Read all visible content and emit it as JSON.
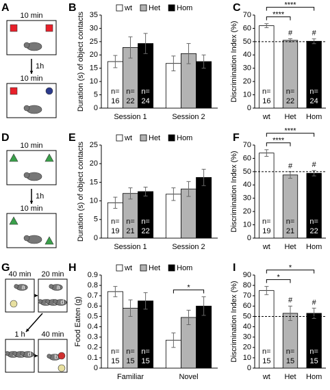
{
  "diagrams": [
    {
      "panel": "A",
      "times": [
        "10 min",
        "10 min"
      ],
      "delay": "1h"
    },
    {
      "panel": "D",
      "times": [
        "10 min",
        "10 min"
      ],
      "delay": "1h"
    },
    {
      "panel": "G",
      "times": [
        "40 min",
        "20 min",
        "1 h",
        "40 min"
      ],
      "mice": [
        [
          "a"
        ],
        [
          "a",
          "b",
          "c",
          "d"
        ],
        [
          "b",
          "c",
          "d"
        ],
        [
          "b"
        ]
      ]
    }
  ],
  "chart_data": [
    {
      "panel": "B",
      "type": "bar",
      "y_label": "Duration (s) of object contacts",
      "categories": [
        "Session 1",
        "Session 2"
      ],
      "series": [
        {
          "name": "wt",
          "color": "#ffffff",
          "values": [
            17.5,
            16.8
          ],
          "errors": [
            2.3,
            2.8
          ],
          "n": [
            16,
            null
          ]
        },
        {
          "name": "Het",
          "color": "#b3b3b3",
          "values": [
            22.8,
            20.5
          ],
          "errors": [
            4,
            3.8
          ],
          "n": [
            22,
            null
          ]
        },
        {
          "name": "Hom",
          "color": "#000000",
          "values": [
            24.3,
            17.5
          ],
          "errors": [
            3.8,
            2.5
          ],
          "n": [
            24,
            null
          ]
        }
      ],
      "n_label": "n=",
      "ylim": [
        0,
        35
      ],
      "yticks": [
        0,
        5,
        10,
        15,
        20,
        25,
        30,
        35
      ],
      "legend": "top"
    },
    {
      "panel": "C",
      "type": "bar",
      "y_label": "Discrimination Index (%)",
      "categories": [
        "wt",
        "Het",
        "Hom"
      ],
      "values": [
        62,
        51,
        50.3
      ],
      "errors": [
        1.5,
        1.2,
        1.8
      ],
      "colors": [
        "#ffffff",
        "#b3b3b3",
        "#000000"
      ],
      "n": [
        16,
        22,
        24
      ],
      "n_label": "n=",
      "ylim": [
        0,
        70
      ],
      "yticks": [
        0,
        10,
        20,
        30,
        40,
        50,
        60,
        70
      ],
      "reference_line": 50,
      "markers": [
        null,
        "#",
        "#"
      ],
      "brackets": [
        {
          "from": 0,
          "to": 1,
          "label": "****"
        },
        {
          "from": 0,
          "to": 2,
          "label": "****"
        }
      ]
    },
    {
      "panel": "E",
      "type": "bar",
      "y_label": "Duration (s) of object contacts",
      "categories": [
        "Session 1",
        "Session 2"
      ],
      "series": [
        {
          "name": "wt",
          "color": "#ffffff",
          "values": [
            9.5,
            11.8
          ],
          "errors": [
            1.5,
            1.7
          ],
          "n": [
            19,
            null
          ]
        },
        {
          "name": "Het",
          "color": "#b3b3b3",
          "values": [
            12,
            13.2
          ],
          "errors": [
            1.5,
            2
          ],
          "n": [
            21,
            null
          ]
        },
        {
          "name": "Hom",
          "color": "#000000",
          "values": [
            12.5,
            16.3
          ],
          "errors": [
            1.2,
            2.2
          ],
          "n": [
            22,
            null
          ]
        }
      ],
      "n_label": "n=",
      "ylim": [
        0,
        25
      ],
      "yticks": [
        0,
        5,
        10,
        15,
        20,
        25
      ],
      "legend": "top"
    },
    {
      "panel": "F",
      "type": "bar",
      "y_label": "Discrimination Index (%)",
      "categories": [
        "wt",
        "Het",
        "Hom"
      ],
      "values": [
        64,
        47.5,
        48.8
      ],
      "errors": [
        2.5,
        2.5,
        2
      ],
      "colors": [
        "#ffffff",
        "#b3b3b3",
        "#000000"
      ],
      "n": [
        19,
        21,
        22
      ],
      "n_label": "n=",
      "ylim": [
        0,
        70
      ],
      "yticks": [
        0,
        10,
        20,
        30,
        40,
        50,
        60,
        70
      ],
      "reference_line": 50,
      "markers": [
        null,
        "#",
        "#"
      ],
      "brackets": [
        {
          "from": 0,
          "to": 1,
          "label": "****"
        },
        {
          "from": 0,
          "to": 2,
          "label": "****"
        }
      ]
    },
    {
      "panel": "H",
      "type": "bar",
      "y_label": "Food Eaten (g)",
      "categories": [
        "Familiar",
        "Novel"
      ],
      "series": [
        {
          "name": "wt",
          "color": "#ffffff",
          "values": [
            0.74,
            0.27
          ],
          "errors": [
            0.05,
            0.07
          ],
          "n": [
            15,
            null
          ]
        },
        {
          "name": "Het",
          "color": "#b3b3b3",
          "values": [
            0.58,
            0.49
          ],
          "errors": [
            0.08,
            0.07
          ],
          "n": [
            15,
            null
          ]
        },
        {
          "name": "Hom",
          "color": "#000000",
          "values": [
            0.65,
            0.6
          ],
          "errors": [
            0.08,
            0.09
          ],
          "n": [
            15,
            null
          ]
        }
      ],
      "n_label": "n=",
      "ylim": [
        0,
        0.9
      ],
      "yticks": [
        0,
        0.1,
        0.2,
        0.3,
        0.4,
        0.5,
        0.6,
        0.7,
        0.8,
        0.9
      ],
      "legend": "top",
      "brackets": [
        {
          "category": 1,
          "from": 0,
          "to": 2,
          "label": "*"
        }
      ]
    },
    {
      "panel": "I",
      "type": "bar",
      "y_label": "Discrimination Index (%)",
      "categories": [
        "wt",
        "Het",
        "Hom"
      ],
      "values": [
        75,
        53,
        53
      ],
      "errors": [
        4,
        7,
        5
      ],
      "colors": [
        "#ffffff",
        "#b3b3b3",
        "#000000"
      ],
      "n": [
        15,
        15,
        15
      ],
      "n_label": "n=",
      "ylim": [
        0,
        90
      ],
      "yticks": [
        0,
        10,
        20,
        30,
        40,
        50,
        60,
        70,
        80,
        90
      ],
      "reference_line": 50,
      "markers": [
        null,
        "#",
        "#"
      ],
      "brackets": [
        {
          "from": 0,
          "to": 1,
          "label": "*"
        },
        {
          "from": 0,
          "to": 2,
          "label": "*"
        }
      ]
    }
  ]
}
